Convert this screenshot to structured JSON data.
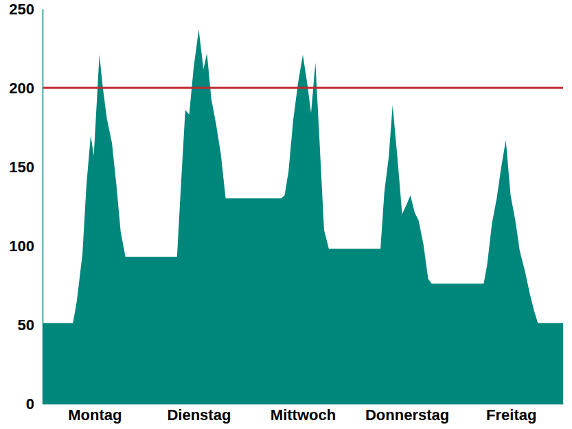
{
  "chart_data": {
    "type": "area",
    "color": "#00877c",
    "x": [
      0,
      7,
      7.9,
      9.2,
      10.1,
      11.1,
      11.8,
      13.1,
      13.9,
      14.8,
      16,
      17,
      18,
      19.1,
      31,
      31.9,
      32.9,
      33.8,
      34.8,
      36,
      37.1,
      37.9,
      38.9,
      40,
      41.1,
      42.2,
      55,
      55.8,
      56.7,
      57.8,
      58.9,
      60,
      61,
      61.9,
      62.9,
      63.8,
      64.9,
      66,
      77.9,
      78.8,
      79.8,
      80.7,
      81.8,
      82.9,
      83.9,
      84.8,
      85.8,
      86.7,
      87.8,
      88.9,
      89.7,
      101.7,
      102.5,
      103.6,
      104.7,
      105.7,
      106.8,
      107.9,
      109,
      110,
      111.2,
      112.3,
      113.3,
      114.2,
      120
    ],
    "values": [
      51,
      51,
      65,
      95,
      138,
      170,
      157,
      221,
      200,
      181,
      165,
      139,
      109,
      93,
      93,
      138,
      186,
      183,
      212,
      237,
      212,
      222,
      193,
      177,
      158,
      130,
      130,
      132,
      147,
      180,
      203,
      221,
      203,
      184,
      216,
      169,
      110,
      98,
      98,
      134,
      156,
      189,
      156,
      120,
      126,
      132,
      121,
      116,
      101,
      79,
      76,
      76,
      88,
      114,
      130,
      149,
      167,
      132,
      116,
      97,
      84,
      70,
      59,
      51,
      51
    ],
    "xlim": [
      0,
      120
    ],
    "xticks": [
      {
        "value": 12,
        "label": "Montag"
      },
      {
        "value": 36,
        "label": "Dienstag"
      },
      {
        "value": 60,
        "label": "Mittwoch"
      },
      {
        "value": 84,
        "label": "Donnerstag"
      },
      {
        "value": 108,
        "label": "Freitag"
      }
    ],
    "ylim": [
      0,
      250
    ],
    "yticks": [
      0,
      50,
      100,
      150,
      200,
      250
    ],
    "hlines": [
      {
        "value": 200,
        "color": "#c1272d"
      }
    ]
  }
}
